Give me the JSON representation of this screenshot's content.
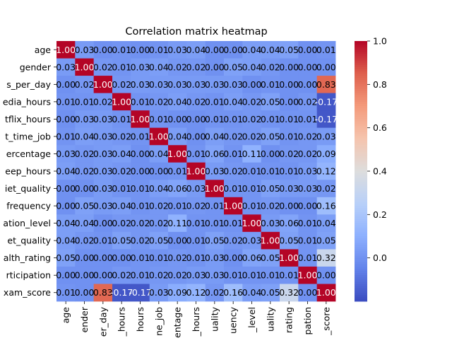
{
  "chart_data": {
    "type": "heatmap",
    "title": "Correlation matrix heatmap",
    "row_labels": [
      "age",
      "gender",
      "s_per_day",
      "edia_hours",
      "tflix_hours",
      "t_time_job",
      "ercentage",
      "eep_hours",
      "iet_quality",
      "frequency",
      "ation_level",
      "et_quality",
      "alth_rating",
      "rticipation",
      "xam_score"
    ],
    "col_labels": [
      "age",
      "ender",
      "er_day",
      "_hours",
      "hours",
      "ne_job",
      "entage",
      "_hours",
      "uality",
      "uency",
      "_level",
      "uality",
      "rating",
      "pation",
      "_score"
    ],
    "values": [
      [
        1.0,
        0.03,
        0.0,
        0.01,
        0.0,
        0.01,
        0.03,
        0.04,
        0.0,
        0.0,
        0.04,
        0.04,
        0.05,
        0.0,
        0.01
      ],
      [
        0.03,
        1.0,
        0.02,
        0.01,
        0.03,
        0.04,
        0.02,
        0.02,
        0.0,
        0.05,
        0.04,
        0.02,
        0.0,
        0.0,
        0.0
      ],
      [
        0.0,
        0.02,
        1.0,
        0.02,
        0.03,
        0.03,
        0.03,
        0.03,
        0.03,
        0.03,
        0.0,
        0.01,
        0.0,
        0.0,
        0.83
      ],
      [
        0.01,
        0.01,
        0.02,
        1.0,
        0.01,
        0.02,
        0.04,
        0.02,
        0.01,
        0.04,
        0.02,
        0.05,
        0.0,
        0.02,
        -0.17
      ],
      [
        0.0,
        0.03,
        0.03,
        0.01,
        1.0,
        0.01,
        0.0,
        0.0,
        0.01,
        0.01,
        0.02,
        0.01,
        0.01,
        0.01,
        -0.17
      ],
      [
        0.01,
        0.04,
        0.03,
        0.02,
        0.01,
        1.0,
        0.04,
        0.0,
        0.04,
        0.02,
        0.02,
        0.05,
        0.01,
        0.02,
        0.03
      ],
      [
        0.03,
        0.02,
        0.03,
        0.04,
        0.0,
        0.04,
        1.0,
        0.01,
        0.06,
        0.01,
        0.11,
        0.0,
        0.02,
        0.02,
        0.09
      ],
      [
        0.04,
        0.02,
        0.03,
        0.02,
        0.0,
        0.0,
        0.01,
        1.0,
        0.03,
        0.02,
        0.01,
        0.01,
        0.01,
        0.03,
        0.12
      ],
      [
        0.0,
        0.0,
        0.03,
        0.01,
        0.01,
        0.04,
        0.06,
        0.03,
        1.0,
        0.01,
        0.01,
        0.05,
        0.03,
        0.03,
        0.02
      ],
      [
        0.0,
        0.05,
        0.03,
        0.04,
        0.01,
        0.02,
        0.01,
        0.02,
        0.01,
        1.0,
        0.01,
        0.02,
        0.0,
        0.0,
        0.16
      ],
      [
        0.04,
        0.04,
        0.0,
        0.02,
        0.02,
        0.02,
        0.11,
        0.01,
        0.01,
        0.01,
        1.0,
        0.03,
        0.06,
        0.01,
        0.04
      ],
      [
        0.04,
        0.02,
        0.01,
        0.05,
        0.02,
        0.05,
        0.0,
        0.01,
        0.05,
        0.02,
        0.03,
        1.0,
        0.05,
        0.01,
        0.05
      ],
      [
        0.05,
        0.0,
        0.0,
        0.0,
        0.01,
        0.01,
        0.02,
        0.01,
        0.03,
        0.0,
        0.06,
        0.05,
        1.0,
        0.01,
        0.32
      ],
      [
        0.0,
        0.0,
        0.0,
        0.02,
        0.01,
        0.02,
        0.02,
        0.03,
        0.03,
        0.01,
        0.01,
        0.01,
        0.01,
        1.0,
        0.0
      ],
      [
        0.01,
        0.0,
        0.83,
        -0.17,
        -0.17,
        0.03,
        0.09,
        0.12,
        0.02,
        0.16,
        0.04,
        0.05,
        0.32,
        0.0,
        1.0
      ]
    ],
    "color_scale": {
      "name": "coolwarm",
      "min": -0.2,
      "max": 1.0,
      "ticks": [
        "0.0",
        "0.2",
        "0.4",
        "0.6",
        "0.8",
        "1.0"
      ],
      "tick_values": [
        0.0,
        0.2,
        0.4,
        0.6,
        0.8,
        1.0
      ]
    },
    "xlabel": "",
    "ylabel": "",
    "legend": "colorbar-right",
    "grid": false
  }
}
